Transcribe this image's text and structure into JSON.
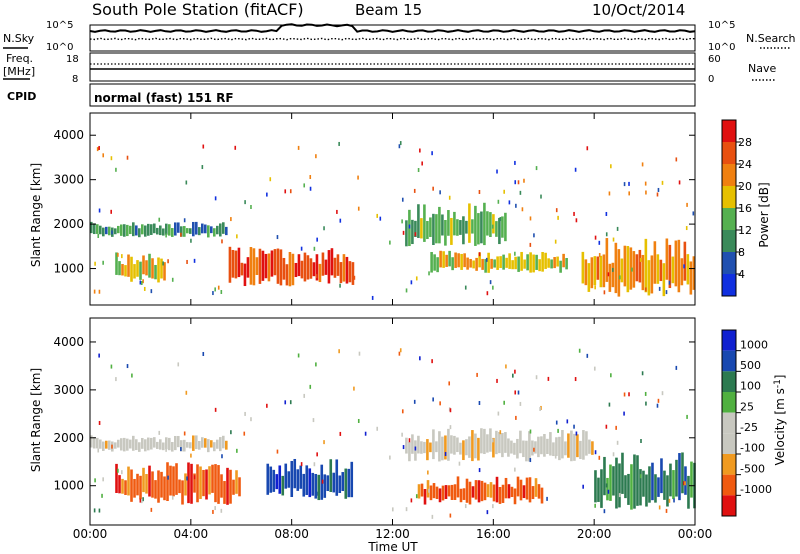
{
  "header": {
    "station": "South Pole Station (fitACF)",
    "beam": "Beam 15",
    "date": "10/Oct/2014"
  },
  "strip_labels": {
    "nsky": "N.Sky",
    "nsearch": "N.Search",
    "freq_line1": "Freq.",
    "freq_line2": "[MHz]",
    "nave": "Nave",
    "cpid": "CPID",
    "cpid_value": "normal (fast) 151 RF",
    "noise_tick_top_left": "10^5",
    "noise_tick_bottom_left": "10^0",
    "noise_tick_top_right": "10^5",
    "noise_tick_bottom_right": "10^0",
    "freq_tick_top": "18",
    "freq_tick_bottom": "8",
    "nave_tick_top": "60",
    "nave_tick_bottom": "0"
  },
  "xaxis": {
    "title": "Time UT",
    "ticks": [
      "00:00",
      "04:00",
      "08:00",
      "12:00",
      "16:00",
      "20:00",
      "00:00"
    ]
  },
  "colors": {
    "power": [
      "#1030e0",
      "#2050b0",
      "#3a8a5a",
      "#55b050",
      "#e6c000",
      "#f08010",
      "#e85010",
      "#e01010"
    ],
    "velocity": [
      "#e01010",
      "#f05a10",
      "#f09a20",
      "#c8c8c0",
      "#c8c8c0",
      "#50b040",
      "#2c7a50",
      "#1848b0",
      "#1020d0"
    ]
  },
  "chart_data": [
    {
      "type": "heatmap",
      "title": "",
      "xlabel": "",
      "ylabel": "Slant Range [km]",
      "xlim": [
        0,
        24
      ],
      "ylim": [
        180,
        4500
      ],
      "yticks": [
        "1000",
        "2000",
        "3000",
        "4000"
      ],
      "colorbar": {
        "label": "Power [dB]",
        "ticks": [
          "4",
          "8",
          "12",
          "16",
          "20",
          "24",
          "28"
        ],
        "range": [
          0,
          32
        ]
      },
      "echo_regions": [
        {
          "t0": 0.0,
          "t1": 5.5,
          "r0": 1700,
          "r1": 2050,
          "value": 9
        },
        {
          "t0": 1.0,
          "t1": 3.0,
          "r0": 650,
          "r1": 1400,
          "value": 16
        },
        {
          "t0": 5.5,
          "t1": 10.5,
          "r0": 600,
          "r1": 1500,
          "value": 26
        },
        {
          "t0": 12.5,
          "t1": 16.5,
          "r0": 1500,
          "r1": 2500,
          "value": 14
        },
        {
          "t0": 13.5,
          "t1": 19.0,
          "r0": 900,
          "r1": 1400,
          "value": 18
        },
        {
          "t0": 19.5,
          "t1": 24.0,
          "r0": 350,
          "r1": 1700,
          "value": 22
        }
      ]
    },
    {
      "type": "heatmap",
      "title": "",
      "xlabel": "Time UT",
      "ylabel": "Slant Range [km]",
      "xlim": [
        0,
        24
      ],
      "ylim": [
        180,
        4500
      ],
      "yticks": [
        "1000",
        "2000",
        "3000",
        "4000"
      ],
      "colorbar": {
        "label": "Velocity [m s^-1]",
        "ticks": [
          "1000",
          "500",
          "100",
          "25",
          "-25",
          "-100",
          "-500",
          "-1000"
        ]
      },
      "echo_regions": [
        {
          "t0": 0.0,
          "t1": 5.5,
          "r0": 1700,
          "r1": 2050,
          "value": 0
        },
        {
          "t0": 1.0,
          "t1": 6.0,
          "r0": 600,
          "r1": 1500,
          "value": -300
        },
        {
          "t0": 7.0,
          "t1": 10.5,
          "r0": 700,
          "r1": 1600,
          "value": 600
        },
        {
          "t0": 12.5,
          "t1": 20.0,
          "r0": 1500,
          "r1": 2200,
          "value": 0
        },
        {
          "t0": 13.0,
          "t1": 18.0,
          "r0": 600,
          "r1": 1200,
          "value": -300
        },
        {
          "t0": 20.0,
          "t1": 24.0,
          "r0": 500,
          "r1": 1700,
          "value": 200
        }
      ]
    }
  ]
}
